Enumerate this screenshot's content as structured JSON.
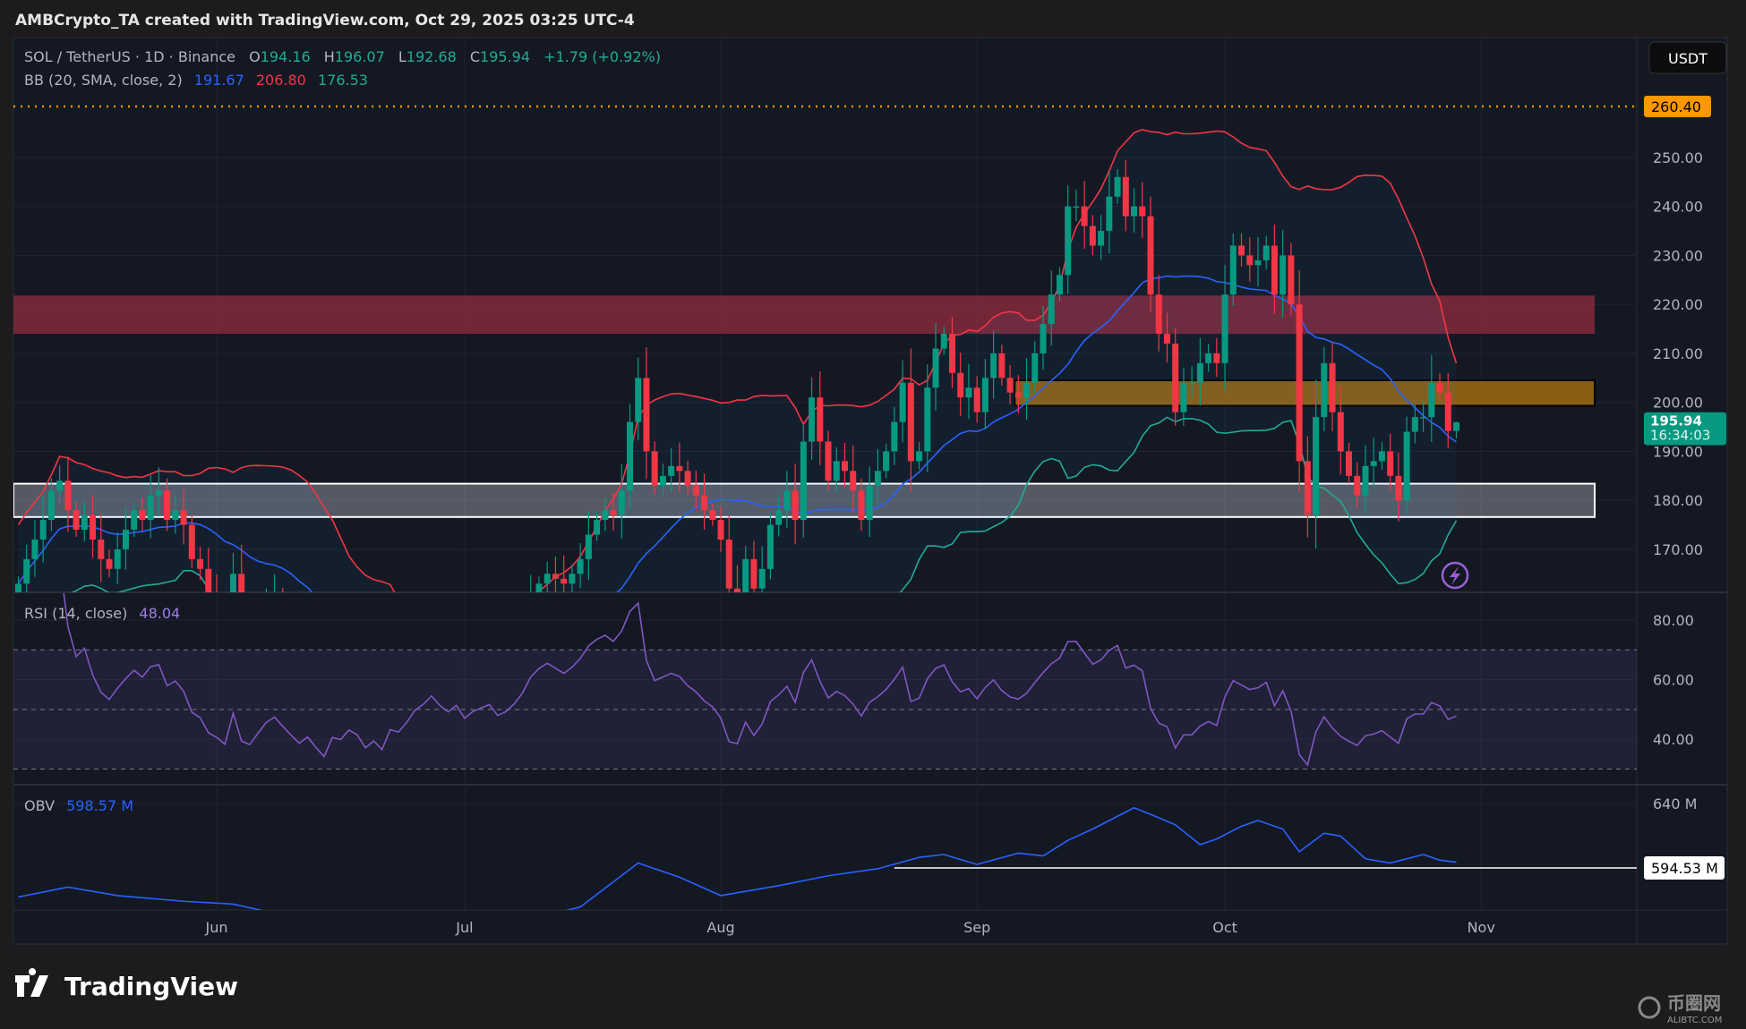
{
  "title": "AMBCrypto_TA created with TradingView.com, Oct 29, 2025 03:25 UTC-4",
  "legend": {
    "symbol": "SOL / TetherUS · 1D · Binance",
    "o_label": "O",
    "open": "194.16",
    "h_label": "H",
    "high": "196.07",
    "l_label": "L",
    "low": "192.68",
    "c_label": "C",
    "close": "195.94",
    "change": "+1.79 (+0.92%)"
  },
  "bb": {
    "label": "BB (20, SMA, close, 2)",
    "basis": "191.67",
    "upper": "206.80",
    "lower": "176.53"
  },
  "currency_button": "USDT",
  "price_axis": {
    "ticks": [
      "250.00",
      "240.00",
      "230.00",
      "220.00",
      "210.00",
      "200.00",
      "190.00",
      "180.00",
      "170.00"
    ],
    "alert_level": "260.40",
    "last_price": "195.94",
    "countdown": "16:34:03"
  },
  "rsi": {
    "label": "RSI (14, close)",
    "value": "48.04",
    "ticks": [
      "80.00",
      "60.00",
      "40.00"
    ]
  },
  "obv": {
    "label": "OBV",
    "value": "598.57 M",
    "ticks": [
      "640 M"
    ],
    "marker": "594.53 M"
  },
  "time_axis": [
    "Jun",
    "Jul",
    "Aug",
    "Sep",
    "Oct",
    "Nov"
  ],
  "branding": "TradingView",
  "watermark": {
    "text": "币圈网",
    "sub": "ALIBTC.COM"
  },
  "colors": {
    "up": "#089981",
    "down": "#f23645",
    "bb_upper": "#f23645",
    "bb_basis": "#2962ff",
    "bb_lower": "#22ab94",
    "rsi": "#7e57c2",
    "obv": "#2962ff",
    "alert": "#ff9800",
    "zone_resistance": "#8e2a3c",
    "zone_mid": "#b8780f",
    "zone_support": "#d1d4dc"
  },
  "chart_data": {
    "type": "candlestick",
    "title": "SOL / TetherUS · 1D · Binance",
    "start_date": "2025-05-08",
    "end_date": "2025-10-29",
    "closes": [
      163,
      168,
      172,
      176,
      182,
      184,
      178,
      174,
      177,
      172,
      168,
      166,
      170,
      174,
      178,
      176,
      181,
      182,
      176,
      178,
      175,
      168,
      166,
      160,
      158,
      155,
      165,
      152,
      150,
      154,
      158,
      160,
      156,
      152,
      148,
      150,
      145,
      140,
      146,
      145,
      148,
      146,
      140,
      142,
      138,
      144,
      143,
      146,
      150,
      152,
      155,
      152,
      150,
      152,
      148,
      150,
      151,
      152,
      149,
      150,
      152,
      155,
      160,
      163,
      165,
      164,
      163,
      165,
      168,
      173,
      176,
      178,
      177,
      182,
      196,
      205,
      190,
      183,
      185,
      187,
      186,
      183,
      181,
      178,
      176,
      172,
      162,
      161,
      168,
      162,
      166,
      175,
      178,
      182,
      176,
      192,
      201,
      192,
      184,
      188,
      186,
      182,
      176,
      183,
      186,
      190,
      196,
      204,
      188,
      190,
      203,
      211,
      214,
      206,
      201,
      203,
      198,
      205,
      210,
      205,
      202,
      201,
      204,
      210,
      216,
      222,
      226,
      240,
      240,
      236,
      232,
      235,
      242,
      246,
      238,
      240,
      238,
      222,
      214,
      212,
      198,
      204,
      204,
      208,
      210,
      208,
      222,
      232,
      230,
      228,
      229,
      232,
      222,
      230,
      220,
      188,
      177,
      197,
      208,
      198,
      190,
      185,
      181,
      187,
      188,
      190,
      185,
      180,
      194,
      197,
      197,
      204,
      202,
      194.16,
      195.94
    ],
    "price_range": [
      158,
      271
    ],
    "alert_level": 260.4,
    "zones": [
      {
        "name": "resistance",
        "low": 214,
        "high": 221.8,
        "from_index": 0
      },
      {
        "name": "mid",
        "low": 199.3,
        "high": 204.5,
        "from_index": 121
      },
      {
        "name": "support",
        "low": 176.6,
        "high": 183.4,
        "from_index": 0
      }
    ],
    "bollinger": {
      "period": 20,
      "mult": 2
    },
    "rsi": {
      "period": 14,
      "range": [
        20,
        90
      ],
      "levels": [
        70,
        50,
        30
      ]
    },
    "obv_points": [
      [
        0,
        574
      ],
      [
        6,
        581
      ],
      [
        12,
        575
      ],
      [
        20,
        571
      ],
      [
        26,
        569
      ],
      [
        33,
        560
      ],
      [
        60,
        555
      ],
      [
        68,
        567
      ],
      [
        75,
        598
      ],
      [
        80,
        588
      ],
      [
        85,
        575
      ],
      [
        92,
        582
      ],
      [
        98,
        589
      ],
      [
        104,
        594
      ],
      [
        109,
        602
      ],
      [
        112,
        604
      ],
      [
        116,
        597
      ],
      [
        121,
        605
      ],
      [
        124,
        603
      ],
      [
        127,
        614
      ],
      [
        130,
        622
      ],
      [
        133,
        631
      ],
      [
        135,
        637
      ],
      [
        138,
        630
      ],
      [
        140,
        625
      ],
      [
        143,
        611
      ],
      [
        145,
        615
      ],
      [
        148,
        624
      ],
      [
        150,
        628
      ],
      [
        153,
        622
      ],
      [
        155,
        606
      ],
      [
        158,
        619
      ],
      [
        160,
        617
      ],
      [
        163,
        601
      ],
      [
        166,
        598
      ],
      [
        170,
        604
      ],
      [
        172,
        600
      ],
      [
        174,
        598.57
      ]
    ],
    "obv_marker": 594.53,
    "obv_marker_from_index": 106,
    "x_ticks": [
      {
        "label": "Jun",
        "index": 24
      },
      {
        "label": "Jul",
        "index": 54
      },
      {
        "label": "Aug",
        "index": 85
      },
      {
        "label": "Sep",
        "index": 116
      },
      {
        "label": "Oct",
        "index": 146
      },
      {
        "label": "Nov",
        "index": 177
      }
    ]
  }
}
